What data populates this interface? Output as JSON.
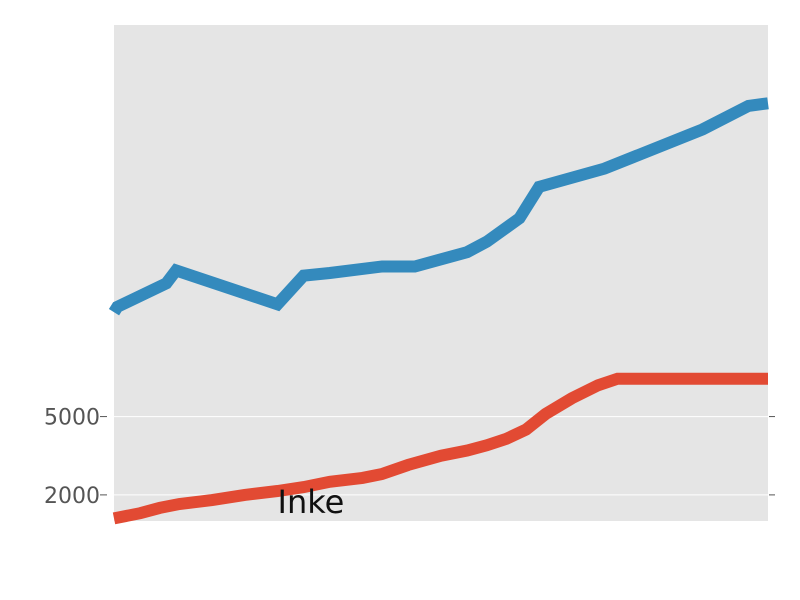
{
  "chart_data": {
    "type": "line",
    "title": "",
    "xlabel": "",
    "ylabel": "",
    "xlim": [
      0,
      100
    ],
    "ylim": [
      1000,
      20000
    ],
    "y_ticks": [
      {
        "value": 2000,
        "label": "2000"
      },
      {
        "value": 5000,
        "label": "5000"
      }
    ],
    "grid": true,
    "background": "#e5e5e5",
    "annotations": [
      {
        "text": "Inke",
        "x": 25,
        "y": 1300
      }
    ],
    "series": [
      {
        "color": "#348abd",
        "x": [
          0,
          0.5,
          8,
          9.5,
          25,
          29,
          33,
          41,
          46,
          54,
          57,
          62,
          65,
          75,
          90,
          97,
          100
        ],
        "y": [
          9000,
          9200,
          10100,
          10600,
          9300,
          10400,
          10500,
          10750,
          10750,
          11300,
          11700,
          12600,
          13800,
          14500,
          16000,
          16900,
          17000
        ]
      },
      {
        "color": "#e24a33",
        "x": [
          0,
          2,
          4,
          7,
          10,
          15,
          20,
          25,
          29,
          33,
          38,
          41,
          45,
          50,
          54,
          57,
          60,
          63,
          66,
          70,
          74,
          77,
          80,
          85,
          100
        ],
        "y": [
          1100,
          1200,
          1300,
          1500,
          1650,
          1800,
          2000,
          2150,
          2300,
          2500,
          2650,
          2800,
          3150,
          3500,
          3700,
          3900,
          4150,
          4500,
          5100,
          5700,
          6200,
          6450,
          6450,
          6450,
          6450
        ]
      }
    ]
  }
}
